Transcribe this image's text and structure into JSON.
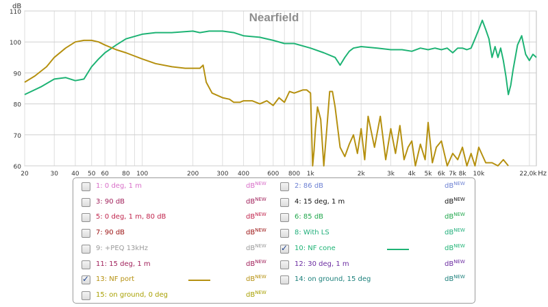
{
  "chart_data": {
    "type": "line",
    "title": "Nearfield",
    "ylabel": "dB",
    "xunit": "Hz",
    "xscale": "log",
    "xlim": [
      20,
      22000
    ],
    "ylim": [
      60,
      110
    ],
    "grid": true,
    "x_ticks": [
      {
        "v": 20,
        "label": "20"
      },
      {
        "v": 30,
        "label": "30"
      },
      {
        "v": 40,
        "label": "40"
      },
      {
        "v": 50,
        "label": "50"
      },
      {
        "v": 60,
        "label": "60"
      },
      {
        "v": 80,
        "label": "80"
      },
      {
        "v": 100,
        "label": "100"
      },
      {
        "v": 200,
        "label": "200"
      },
      {
        "v": 300,
        "label": "300"
      },
      {
        "v": 400,
        "label": "400"
      },
      {
        "v": 600,
        "label": "600"
      },
      {
        "v": 800,
        "label": "800"
      },
      {
        "v": 1000,
        "label": "1k"
      },
      {
        "v": 2000,
        "label": "2k"
      },
      {
        "v": 3000,
        "label": "3k"
      },
      {
        "v": 4000,
        "label": "4k"
      },
      {
        "v": 5000,
        "label": "5k"
      },
      {
        "v": 6000,
        "label": "6k"
      },
      {
        "v": 7000,
        "label": "7k"
      },
      {
        "v": 8000,
        "label": "8k"
      },
      {
        "v": 10000,
        "label": "10k"
      },
      {
        "v": 22000,
        "label": "22,0k"
      }
    ],
    "y_ticks": [
      60,
      70,
      80,
      90,
      100,
      110
    ],
    "series": [
      {
        "name": "10: NF cone",
        "color": "#1db374",
        "x": [
          20,
          25,
          30,
          35,
          40,
          45,
          50,
          55,
          60,
          70,
          80,
          100,
          120,
          150,
          200,
          220,
          250,
          300,
          350,
          400,
          500,
          600,
          700,
          800,
          1000,
          1200,
          1400,
          1500,
          1600,
          1700,
          1800,
          2000,
          2500,
          3000,
          3500,
          4000,
          4500,
          5000,
          5500,
          6000,
          6500,
          7000,
          7500,
          8000,
          8500,
          9000,
          9500,
          10000,
          10500,
          11000,
          11500,
          12000,
          12500,
          13000,
          13500,
          14000,
          14500,
          15000,
          15500,
          16000,
          17000,
          18000,
          19000,
          20000,
          21000,
          22000
        ],
        "y": [
          83,
          85.5,
          88,
          88.5,
          87.5,
          88,
          92,
          94.5,
          96.5,
          99,
          101,
          102.5,
          103,
          103,
          103.5,
          103,
          103.5,
          103.5,
          103,
          102,
          101.5,
          100.5,
          99.5,
          99.5,
          98,
          96.5,
          95,
          92.5,
          95,
          97,
          98,
          98.5,
          98,
          97.5,
          97.5,
          97,
          98,
          97.5,
          98,
          97.5,
          98,
          96.5,
          98,
          98,
          97.5,
          98,
          101,
          104,
          107,
          104,
          101,
          95,
          98.5,
          95,
          98,
          94,
          89,
          83,
          86,
          91,
          99,
          102,
          96,
          94,
          96,
          95
        ]
      },
      {
        "name": "13: NF port",
        "color": "#b5900f",
        "x": [
          20,
          23,
          27,
          30,
          35,
          40,
          45,
          50,
          55,
          60,
          70,
          80,
          100,
          120,
          150,
          180,
          200,
          220,
          230,
          240,
          260,
          300,
          330,
          350,
          380,
          400,
          450,
          500,
          550,
          600,
          650,
          700,
          750,
          800,
          850,
          900,
          950,
          1000,
          1030,
          1050,
          1070,
          1100,
          1150,
          1200,
          1250,
          1300,
          1350,
          1400,
          1500,
          1600,
          1700,
          1800,
          1900,
          2000,
          2100,
          2200,
          2400,
          2600,
          2800,
          3000,
          3200,
          3400,
          3600,
          3800,
          4000,
          4200,
          4500,
          4800,
          5000,
          5300,
          5600,
          6000,
          6500,
          7000,
          7500,
          8000,
          8500,
          9000,
          9500,
          10000,
          11000,
          12000,
          13000,
          14000,
          15000
        ],
        "y": [
          87,
          89,
          92,
          95,
          98,
          100,
          100.5,
          100.5,
          100,
          99,
          97.5,
          96.5,
          94.5,
          93,
          92,
          91.5,
          91.5,
          91.5,
          92.5,
          87,
          83.5,
          82,
          81.5,
          80.5,
          80.5,
          81,
          81,
          80,
          81,
          79.5,
          82,
          80.5,
          84,
          83.5,
          84,
          84.5,
          84.5,
          83.5,
          60,
          65,
          72,
          79,
          75,
          60,
          72,
          84,
          84,
          79,
          66,
          63,
          67,
          70,
          64,
          72,
          62,
          76,
          66,
          76,
          62,
          72,
          64,
          73,
          62,
          66,
          68,
          60,
          67,
          62,
          74,
          61,
          66,
          68,
          60,
          64,
          62,
          66,
          60,
          64,
          60,
          66,
          61,
          61,
          60,
          62,
          60
        ]
      }
    ]
  },
  "legend": {
    "db_label": "dB",
    "new_label": "NEW",
    "items": [
      {
        "label": "1: 0 deg, 1 m",
        "checked": false,
        "color": "#d86ec8",
        "db_color": "#d86ec8"
      },
      {
        "label": "2: 86 dB",
        "checked": false,
        "color": "#6b7fd2",
        "db_color": "#6b7fd2"
      },
      {
        "label": "3: 90 dB",
        "checked": false,
        "color": "#a0205a",
        "db_color": "#a0205a"
      },
      {
        "label": "4: 15 deg, 1 m",
        "checked": false,
        "color": "#111111",
        "db_color": "#111111"
      },
      {
        "label": "5: 0 deg, 1 m, 80 dB",
        "checked": false,
        "color": "#c0244c",
        "db_color": "#c0244c"
      },
      {
        "label": "6: 85 dB",
        "checked": false,
        "color": "#1ea64a",
        "db_color": "#1ea64a"
      },
      {
        "label": "7: 90 dB",
        "checked": false,
        "color": "#9a1010",
        "db_color": "#9a1010"
      },
      {
        "label": "8: With LS",
        "checked": false,
        "color": "#1fae7a",
        "db_color": "#1fae7a"
      },
      {
        "label": "9: +PEQ 13kHz",
        "checked": false,
        "color": "#9a9a9a",
        "db_color": "#9a9a9a"
      },
      {
        "label": "10: NF cone",
        "checked": true,
        "color": "#1db374",
        "db_color": "#1db374"
      },
      {
        "label": "11: 15 deg, 1 m",
        "checked": false,
        "color": "#a0205a",
        "db_color": "#a0205a"
      },
      {
        "label": "12: 30 deg, 1 m",
        "checked": false,
        "color": "#6a2aa0",
        "db_color": "#6a2aa0"
      },
      {
        "label": "13: NF port",
        "checked": true,
        "color": "#b5900f",
        "db_color": "#b5900f"
      },
      {
        "label": "14: on ground, 15 deg",
        "checked": false,
        "color": "#1a7f7a",
        "db_color": "#1a7f7a"
      },
      {
        "label": "15: on ground, 0 deg",
        "checked": false,
        "color": "#a8a000",
        "db_color": "#a8a000"
      }
    ]
  }
}
